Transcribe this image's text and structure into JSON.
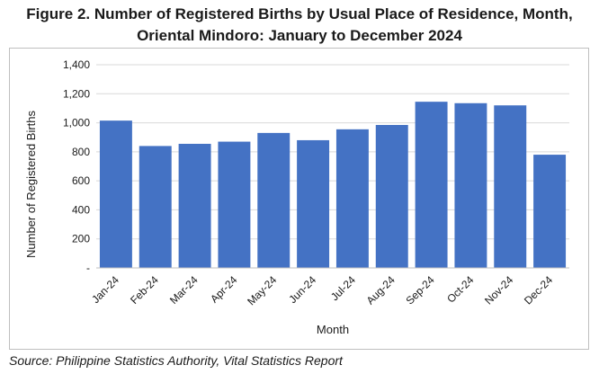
{
  "figure": {
    "title_line1": "Figure 2. Number of Registered Births by Usual Place of Residence, Month,",
    "title_line2": "Oriental Mindoro: January to December 2024",
    "source": "Source: Philippine Statistics Authority, Vital Statistics Report"
  },
  "chart_data": {
    "type": "bar",
    "categories": [
      "Jan-24",
      "Feb-24",
      "Mar-24",
      "Apr-24",
      "May-24",
      "Jun-24",
      "Jul-24",
      "Aug-24",
      "Sep-24",
      "Oct-24",
      "Nov-24",
      "Dec-24"
    ],
    "values": [
      1015,
      840,
      855,
      870,
      930,
      880,
      955,
      985,
      1145,
      1135,
      1120,
      780
    ],
    "xlabel": "Month",
    "ylabel": "Number of Registered Births",
    "ylim": [
      0,
      1400
    ],
    "yticks": [
      0,
      200,
      400,
      600,
      800,
      1000,
      1200,
      1400
    ],
    "ytick_labels": [
      "-",
      "200",
      "400",
      "600",
      "800",
      "1,000",
      "1,200",
      "1,400"
    ],
    "bar_color": "#4472c4",
    "grid": true,
    "legend": "none"
  }
}
